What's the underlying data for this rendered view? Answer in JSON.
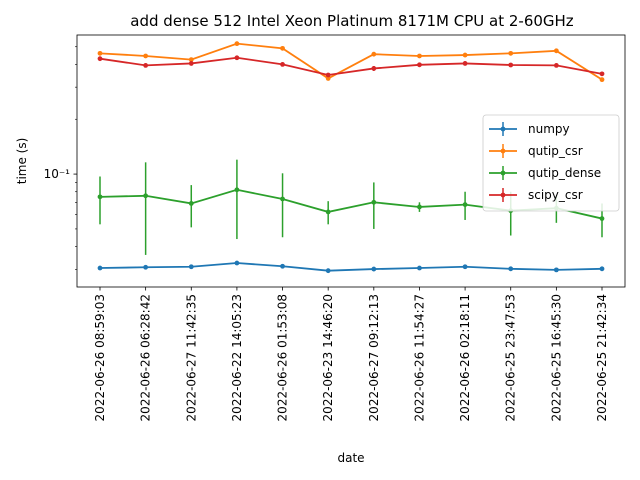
{
  "chart_data": {
    "type": "line",
    "title": "add dense 512 Intel Xeon Platinum 8171M CPU at 2-60GHz",
    "xlabel": "date",
    "ylabel": "time (s)",
    "yscale": "log",
    "ylim": [
      0.024,
      0.58
    ],
    "y_tick_labels": [
      {
        "value": 0.1,
        "label": "10⁻¹"
      }
    ],
    "categories": [
      "2022-06-26 08:59:03",
      "2022-06-26 06:28:42",
      "2022-06-27 11:42:35",
      "2022-06-22 14:05:23",
      "2022-06-26 01:53:08",
      "2022-06-23 14:46:20",
      "2022-06-27 09:12:13",
      "2022-06-26 11:54:27",
      "2022-06-26 02:18:11",
      "2022-06-25 23:47:53",
      "2022-06-25 16:45:30",
      "2022-06-25 21:42:34"
    ],
    "legend_position": "center-right",
    "grid": false,
    "series": [
      {
        "name": "numpy",
        "color": "#1f77b4",
        "values": [
          0.0305,
          0.0308,
          0.031,
          0.0325,
          0.0312,
          0.0295,
          0.0301,
          0.0305,
          0.031,
          0.0302,
          0.0298,
          0.0302
        ],
        "errors": [
          0.0003,
          0.0008,
          0.0005,
          0.0006,
          0.0004,
          0.0003,
          0.0004,
          0.0003,
          0.0004,
          0.0003,
          0.0003,
          0.0003
        ]
      },
      {
        "name": "qutip_csr",
        "color": "#ff7f0e",
        "values": [
          0.46,
          0.445,
          0.425,
          0.52,
          0.49,
          0.335,
          0.455,
          0.445,
          0.45,
          0.46,
          0.475,
          0.33
        ],
        "errors": [
          0.005,
          0.005,
          0.005,
          0.006,
          0.005,
          0.004,
          0.005,
          0.005,
          0.005,
          0.005,
          0.005,
          0.004
        ]
      },
      {
        "name": "qutip_dense",
        "color": "#2ca02c",
        "values": [
          0.075,
          0.076,
          0.069,
          0.082,
          0.073,
          0.062,
          0.07,
          0.066,
          0.068,
          0.063,
          0.065,
          0.057
        ],
        "errors": [
          0.022,
          0.04,
          0.018,
          0.038,
          0.028,
          0.009,
          0.02,
          0.004,
          0.012,
          0.017,
          0.011,
          0.012
        ]
      },
      {
        "name": "scipy_csr",
        "color": "#d62728",
        "values": [
          0.43,
          0.395,
          0.405,
          0.435,
          0.4,
          0.35,
          0.38,
          0.398,
          0.405,
          0.397,
          0.395,
          0.355
        ],
        "errors": [
          0.006,
          0.005,
          0.005,
          0.006,
          0.005,
          0.005,
          0.012,
          0.006,
          0.005,
          0.005,
          0.005,
          0.005
        ]
      }
    ]
  }
}
